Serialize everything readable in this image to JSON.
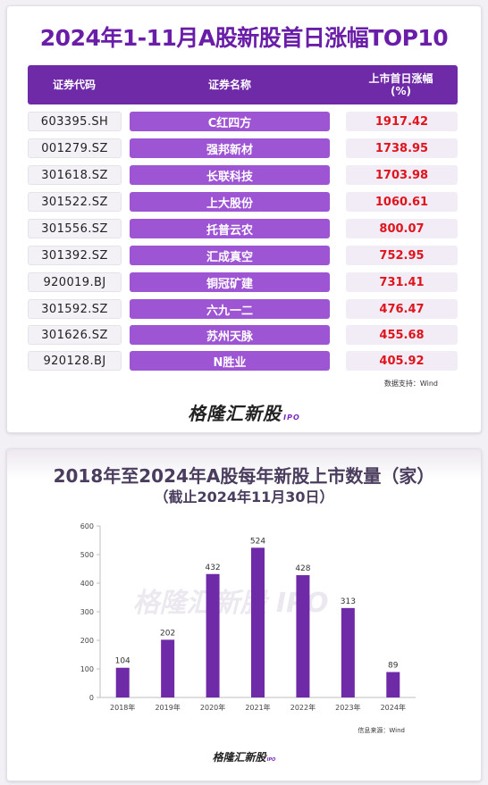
{
  "table": {
    "title": "2024年1-11月A股新股首日涨幅TOP10",
    "headers": {
      "code": "证券代码",
      "name": "证券名称",
      "gain_line1": "上市首日涨幅",
      "gain_line2": "(%)"
    },
    "rows": [
      {
        "code": "603395.SH",
        "name": "C红四方",
        "gain": "1917.42"
      },
      {
        "code": "001279.SZ",
        "name": "强邦新材",
        "gain": "1738.95"
      },
      {
        "code": "301618.SZ",
        "name": "长联科技",
        "gain": "1703.98"
      },
      {
        "code": "301522.SZ",
        "name": "上大股份",
        "gain": "1060.61"
      },
      {
        "code": "301556.SZ",
        "name": "托普云农",
        "gain": "800.07"
      },
      {
        "code": "301392.SZ",
        "name": "汇成真空",
        "gain": "752.95"
      },
      {
        "code": "920019.BJ",
        "name": "铜冠矿建",
        "gain": "731.41"
      },
      {
        "code": "301592.SZ",
        "name": "六九一二",
        "gain": "476.47"
      },
      {
        "code": "301626.SZ",
        "name": "苏州天脉",
        "gain": "455.68"
      },
      {
        "code": "920128.BJ",
        "name": "N胜业",
        "gain": "405.92"
      }
    ],
    "source": "数据支持：Wind",
    "logo": "格隆汇新股",
    "logo_suffix": "IPO"
  },
  "chart_data": {
    "type": "bar",
    "title": "2018年至2024年A股每年新股上市数量（家）",
    "subtitle": "（截止2024年11月30日）",
    "categories": [
      "2018年",
      "2019年",
      "2020年",
      "2021年",
      "2022年",
      "2023年",
      "2024年"
    ],
    "values": [
      104,
      202,
      432,
      524,
      428,
      313,
      89
    ],
    "data_labels": [
      "104",
      "202",
      "432",
      "524",
      "428",
      "313",
      "89"
    ],
    "xlabel": "",
    "ylabel": "",
    "ylim": [
      0,
      600
    ],
    "yticks": [
      0,
      100,
      200,
      300,
      400,
      500,
      600
    ],
    "ytick_labels": [
      "0",
      "100",
      "200",
      "300",
      "400",
      "500",
      "600"
    ],
    "grid": false,
    "bar_color": "#6f2aa8",
    "source": "信息来源：Wind",
    "watermark": "格隆汇新股",
    "watermark_suffix": "IPO",
    "logo": "格隆汇新股",
    "logo_suffix": "IPO"
  },
  "colors": {
    "title": "#6a1ea8",
    "header_bg": "#6f2aa8",
    "name_bg": "#9d55d4",
    "gain_text": "#e0141c"
  }
}
